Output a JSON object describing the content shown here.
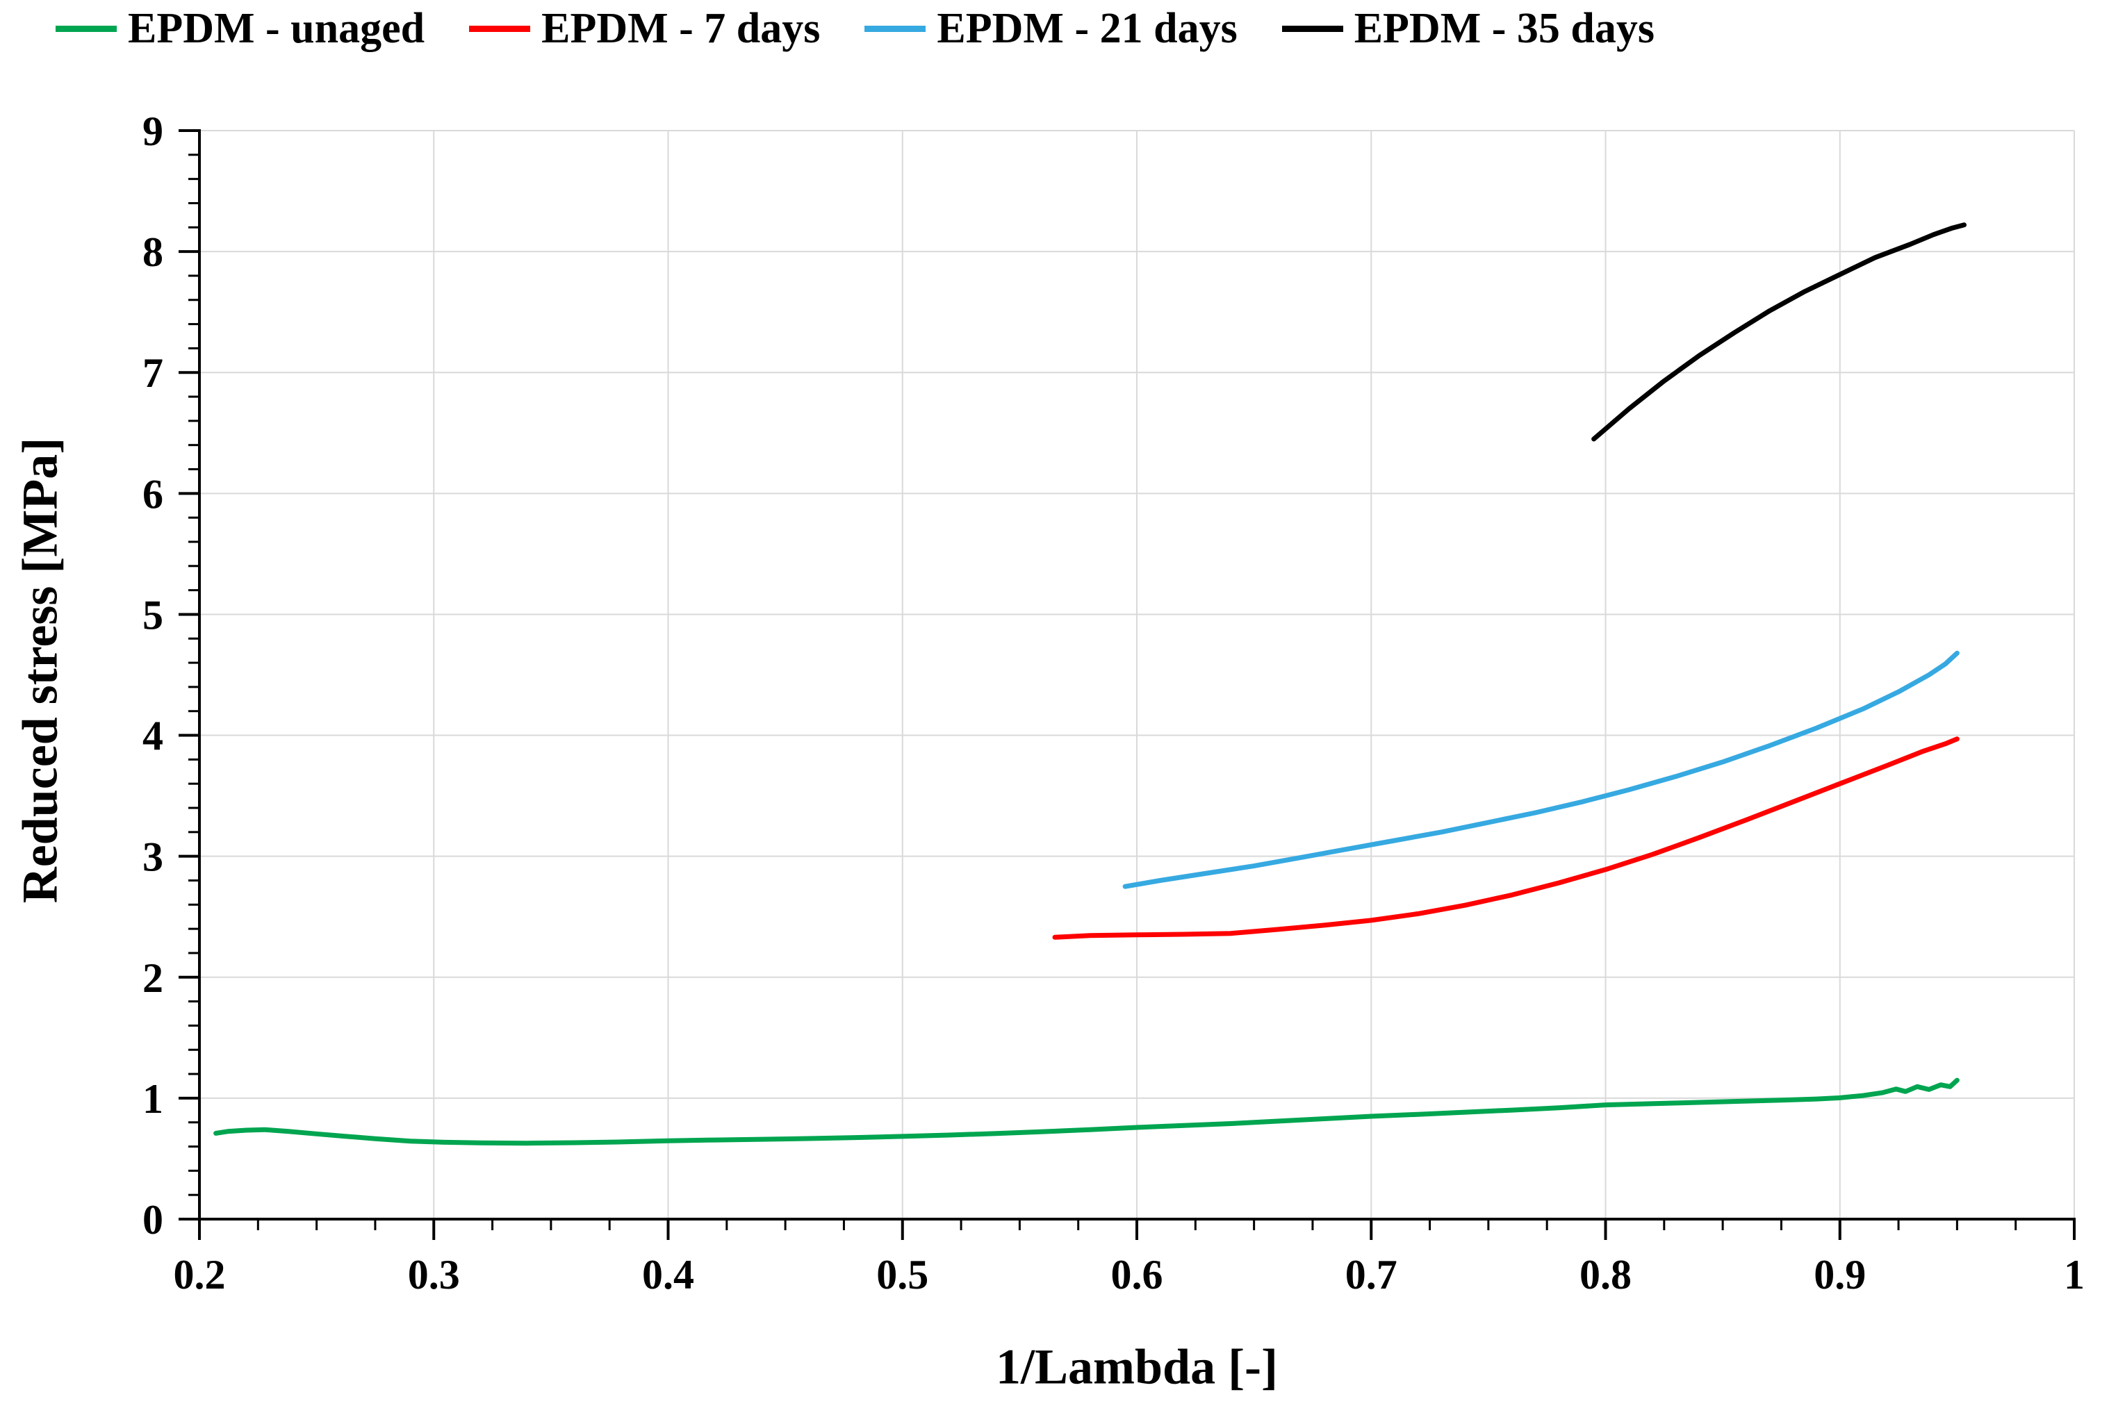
{
  "figure": {
    "background": "#ffffff"
  },
  "chart_data": {
    "type": "line",
    "title": "",
    "xlabel": "1/Lambda [-]",
    "ylabel": "Reduced stress [MPa]",
    "xlim": [
      0.2,
      1.0
    ],
    "ylim": [
      0,
      9
    ],
    "x_ticks": [
      0.2,
      0.3,
      0.4,
      0.5,
      0.6,
      0.7,
      0.8,
      0.9,
      1.0
    ],
    "x_tick_labels": [
      "0.2",
      "0.3",
      "0.4",
      "0.5",
      "0.6",
      "0.7",
      "0.8",
      "0.9",
      "1"
    ],
    "y_ticks": [
      0,
      1,
      2,
      3,
      4,
      5,
      6,
      7,
      8,
      9
    ],
    "y_tick_labels": [
      "0",
      "1",
      "2",
      "3",
      "4",
      "5",
      "6",
      "7",
      "8",
      "9"
    ],
    "x_minor_step": 0.025,
    "y_minor_step": 0.2,
    "grid": true,
    "grid_color": "#d9d9d9",
    "axis_color": "#000000",
    "legend_position": "top",
    "series": [
      {
        "name": "EPDM - unaged",
        "color": "#00A550",
        "points": [
          [
            0.207,
            0.71
          ],
          [
            0.212,
            0.725
          ],
          [
            0.22,
            0.735
          ],
          [
            0.228,
            0.74
          ],
          [
            0.238,
            0.725
          ],
          [
            0.25,
            0.705
          ],
          [
            0.262,
            0.685
          ],
          [
            0.275,
            0.665
          ],
          [
            0.29,
            0.645
          ],
          [
            0.305,
            0.635
          ],
          [
            0.32,
            0.63
          ],
          [
            0.34,
            0.628
          ],
          [
            0.36,
            0.632
          ],
          [
            0.38,
            0.638
          ],
          [
            0.4,
            0.648
          ],
          [
            0.42,
            0.654
          ],
          [
            0.44,
            0.66
          ],
          [
            0.46,
            0.666
          ],
          [
            0.48,
            0.674
          ],
          [
            0.5,
            0.684
          ],
          [
            0.52,
            0.695
          ],
          [
            0.54,
            0.708
          ],
          [
            0.56,
            0.723
          ],
          [
            0.58,
            0.74
          ],
          [
            0.6,
            0.758
          ],
          [
            0.62,
            0.774
          ],
          [
            0.64,
            0.79
          ],
          [
            0.66,
            0.81
          ],
          [
            0.68,
            0.83
          ],
          [
            0.7,
            0.85
          ],
          [
            0.72,
            0.866
          ],
          [
            0.74,
            0.884
          ],
          [
            0.76,
            0.901
          ],
          [
            0.78,
            0.92
          ],
          [
            0.8,
            0.944
          ],
          [
            0.815,
            0.952
          ],
          [
            0.83,
            0.96
          ],
          [
            0.845,
            0.968
          ],
          [
            0.86,
            0.976
          ],
          [
            0.875,
            0.983
          ],
          [
            0.89,
            0.993
          ],
          [
            0.9,
            1.003
          ],
          [
            0.91,
            1.022
          ],
          [
            0.918,
            1.045
          ],
          [
            0.924,
            1.075
          ],
          [
            0.928,
            1.055
          ],
          [
            0.933,
            1.095
          ],
          [
            0.938,
            1.072
          ],
          [
            0.943,
            1.11
          ],
          [
            0.947,
            1.095
          ],
          [
            0.95,
            1.148
          ]
        ]
      },
      {
        "name": "EPDM - 7 days",
        "color": "#FF0000",
        "points": [
          [
            0.565,
            2.33
          ],
          [
            0.58,
            2.345
          ],
          [
            0.6,
            2.35
          ],
          [
            0.62,
            2.355
          ],
          [
            0.64,
            2.362
          ],
          [
            0.66,
            2.395
          ],
          [
            0.68,
            2.43
          ],
          [
            0.7,
            2.47
          ],
          [
            0.72,
            2.525
          ],
          [
            0.74,
            2.595
          ],
          [
            0.76,
            2.68
          ],
          [
            0.78,
            2.78
          ],
          [
            0.8,
            2.89
          ],
          [
            0.82,
            3.015
          ],
          [
            0.84,
            3.155
          ],
          [
            0.86,
            3.3
          ],
          [
            0.88,
            3.45
          ],
          [
            0.9,
            3.6
          ],
          [
            0.92,
            3.75
          ],
          [
            0.935,
            3.865
          ],
          [
            0.945,
            3.93
          ],
          [
            0.95,
            3.97
          ]
        ]
      },
      {
        "name": "EPDM - 21 days",
        "color": "#36A9E1",
        "points": [
          [
            0.595,
            2.75
          ],
          [
            0.61,
            2.8
          ],
          [
            0.63,
            2.86
          ],
          [
            0.65,
            2.92
          ],
          [
            0.67,
            2.99
          ],
          [
            0.69,
            3.06
          ],
          [
            0.71,
            3.13
          ],
          [
            0.73,
            3.2
          ],
          [
            0.75,
            3.28
          ],
          [
            0.77,
            3.36
          ],
          [
            0.79,
            3.45
          ],
          [
            0.81,
            3.55
          ],
          [
            0.83,
            3.66
          ],
          [
            0.85,
            3.78
          ],
          [
            0.87,
            3.915
          ],
          [
            0.89,
            4.06
          ],
          [
            0.91,
            4.22
          ],
          [
            0.925,
            4.36
          ],
          [
            0.938,
            4.5
          ],
          [
            0.945,
            4.59
          ],
          [
            0.95,
            4.68
          ]
        ]
      },
      {
        "name": "EPDM - 35 days",
        "color": "#000000",
        "points": [
          [
            0.795,
            6.45
          ],
          [
            0.81,
            6.7
          ],
          [
            0.825,
            6.93
          ],
          [
            0.84,
            7.14
          ],
          [
            0.855,
            7.33
          ],
          [
            0.87,
            7.51
          ],
          [
            0.885,
            7.67
          ],
          [
            0.9,
            7.81
          ],
          [
            0.915,
            7.95
          ],
          [
            0.93,
            8.06
          ],
          [
            0.94,
            8.14
          ],
          [
            0.948,
            8.195
          ],
          [
            0.953,
            8.22
          ]
        ]
      }
    ]
  }
}
